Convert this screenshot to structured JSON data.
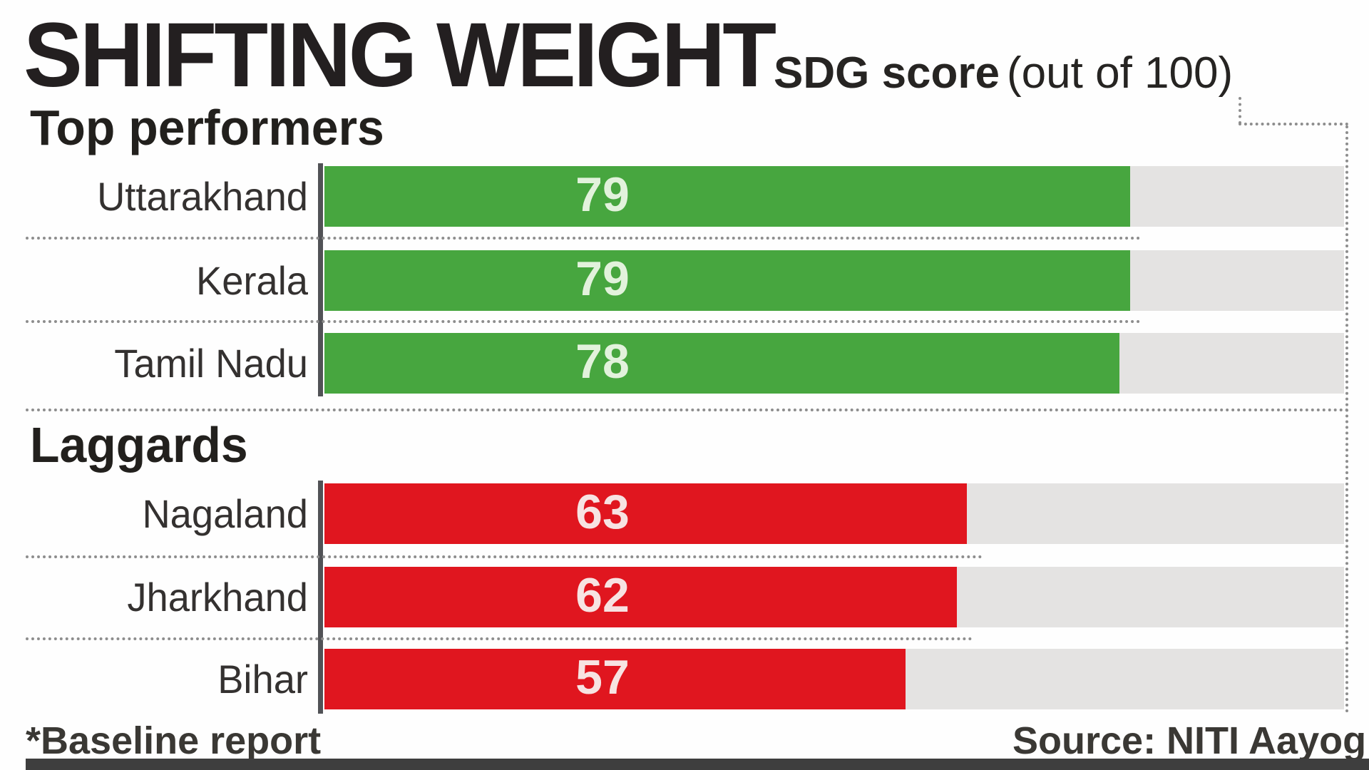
{
  "title": "SHIFTING WEIGHT",
  "subtitle": {
    "bold": "SDG score",
    "paren": "(out of 100)"
  },
  "footnote": "*Baseline report",
  "source": "Source: NITI Aayog",
  "colors": {
    "green_bar": "#47a63f",
    "red_bar": "#e0161f",
    "track_gray": "#e4e3e2",
    "axis_gray": "#515256",
    "dotted_gray": "#8d8d8d",
    "title_text": "#231f20",
    "label_text": "#343130",
    "score_on_green": "#e2f2dc",
    "score_on_red": "#f7e3e2",
    "footer_text": "#3a3834",
    "bottom_strip": "#3e3e3e"
  },
  "chart_data": {
    "type": "bar",
    "orientation": "horizontal",
    "title": "SHIFTING WEIGHT",
    "value_label": "SDG score (out of 100)",
    "xlim": [
      0,
      100
    ],
    "grid": "single dotted gridline at 100",
    "groups": [
      {
        "heading": "Top performers",
        "bar_color": "#47a63f",
        "value_color": "#e2f2dc",
        "items": [
          {
            "label": "Uttarakhand",
            "value": 79
          },
          {
            "label": "Kerala",
            "value": 79
          },
          {
            "label": "Tamil Nadu",
            "value": 78
          }
        ]
      },
      {
        "heading": "Laggards",
        "bar_color": "#e0161f",
        "value_color": "#f7e3e2",
        "items": [
          {
            "label": "Nagaland",
            "value": 63
          },
          {
            "label": "Jharkhand",
            "value": 62
          },
          {
            "label": "Bihar",
            "value": 57
          }
        ]
      }
    ]
  }
}
